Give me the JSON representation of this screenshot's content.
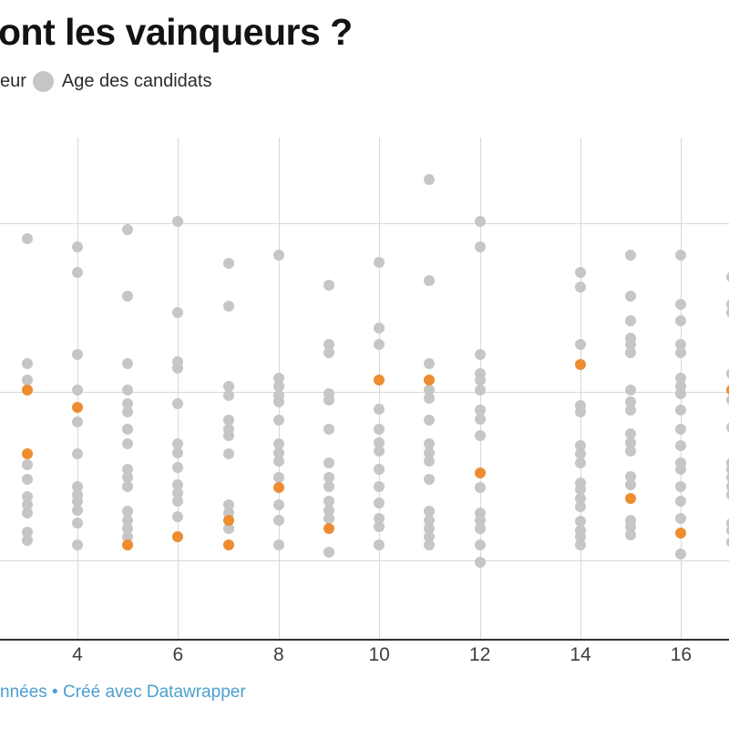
{
  "header": {
    "title": "ont les vainqueurs ?"
  },
  "legend": {
    "winner_label": "eur",
    "candidates_label": "Age des candidats",
    "candidates_swatch_color": "#c6c6c6"
  },
  "footer": {
    "source_fragment": "nnées",
    "separator": " • ",
    "credit": "Créé avec Datawrapper"
  },
  "chart_data": {
    "type": "scatter",
    "title_visible_fragment": "ont les vainqueurs ?",
    "x_axis": {
      "tick_values": [
        4,
        6,
        8,
        10,
        12,
        14,
        16
      ],
      "tick_labels": [
        "4",
        "6",
        "8",
        "10",
        "12",
        "14",
        "16"
      ],
      "visible_range": [
        2.8,
        17
      ],
      "gridlines": true
    },
    "y_axis": {
      "gridline_values": [
        50,
        40,
        30
      ],
      "labels_visible": false,
      "approx_range": [
        25,
        55
      ]
    },
    "series_meta": {
      "winner_name": "Vainqueur",
      "winner_color": "#ee8c31",
      "candidate_name": "Age des candidats",
      "candidate_color": "#c6c6c6"
    },
    "columns": [
      {
        "x": 3,
        "candidates": [
          49.1,
          41.7,
          40.7,
          35.7,
          34.8,
          33.8,
          33.3,
          32.8,
          31.7,
          31.2
        ],
        "winners": [
          40.1,
          36.3
        ]
      },
      {
        "x": 4,
        "candidates": [
          48.6,
          47.1,
          42.2,
          40.1,
          38.2,
          36.3,
          34.4,
          33.9,
          33.5,
          33.0,
          32.2,
          30.9
        ],
        "winners": [
          39.1
        ]
      },
      {
        "x": 5,
        "candidates": [
          49.6,
          45.7,
          41.7,
          40.1,
          39.3,
          38.8,
          37.8,
          36.9,
          35.4,
          34.9,
          34.4,
          32.9,
          32.4,
          31.9,
          31.4
        ],
        "winners": [
          30.9
        ]
      },
      {
        "x": 6,
        "candidates": [
          50.1,
          44.7,
          41.8,
          41.4,
          39.3,
          36.9,
          36.4,
          35.5,
          34.5,
          34.0,
          33.5,
          32.6
        ],
        "winners": [
          31.4
        ]
      },
      {
        "x": 7,
        "candidates": [
          47.6,
          45.1,
          40.3,
          39.8,
          38.3,
          37.8,
          37.4,
          36.3,
          33.3,
          32.8,
          31.9
        ],
        "winners": [
          32.4,
          30.9
        ]
      },
      {
        "x": 8,
        "candidates": [
          48.1,
          40.8,
          40.3,
          39.8,
          39.4,
          38.3,
          36.9,
          36.4,
          35.9,
          34.9,
          33.3,
          32.4,
          30.9
        ],
        "winners": [
          34.3
        ]
      },
      {
        "x": 9,
        "candidates": [
          46.3,
          42.8,
          42.3,
          39.9,
          39.5,
          37.8,
          35.8,
          34.9,
          34.4,
          33.5,
          33.0,
          32.5,
          30.5
        ],
        "winners": [
          31.9
        ]
      },
      {
        "x": 10,
        "candidates": [
          47.7,
          43.8,
          42.8,
          39.0,
          37.8,
          37.0,
          36.5,
          35.4,
          34.4,
          33.4,
          32.5,
          32.0,
          30.9
        ],
        "winners": [
          40.7
        ]
      },
      {
        "x": 11,
        "candidates": [
          52.6,
          46.6,
          41.7,
          40.1,
          39.6,
          38.3,
          36.9,
          36.4,
          35.9,
          34.8,
          32.9,
          32.4,
          31.9,
          31.4,
          30.9
        ],
        "winners": [
          40.7
        ]
      },
      {
        "x": 12,
        "candidates": [
          50.1,
          48.6,
          42.2,
          41.1,
          40.7,
          40.1,
          38.9,
          38.4,
          37.4,
          34.3,
          32.8,
          32.4,
          31.9,
          30.9,
          29.9
        ],
        "winners": [
          35.2
        ]
      },
      {
        "x": 14,
        "candidates": [
          47.1,
          46.2,
          42.8,
          39.2,
          38.8,
          36.8,
          36.3,
          35.8,
          34.6,
          34.2,
          33.7,
          33.2,
          32.3,
          31.8,
          31.4,
          30.9
        ],
        "winners": [
          41.6
        ]
      },
      {
        "x": 15,
        "candidates": [
          48.1,
          45.7,
          44.2,
          43.2,
          42.8,
          42.3,
          40.1,
          39.4,
          38.9,
          37.5,
          37.0,
          36.5,
          35.0,
          34.5,
          32.4,
          32.0,
          31.5
        ],
        "winners": [
          33.7
        ]
      },
      {
        "x": 16,
        "candidates": [
          48.1,
          45.2,
          44.2,
          42.8,
          42.3,
          40.8,
          40.3,
          39.9,
          38.9,
          37.8,
          36.8,
          35.8,
          35.4,
          34.4,
          33.5,
          32.5,
          30.4
        ],
        "winners": [
          31.6
        ]
      },
      {
        "x": 17,
        "candidates": [
          46.8,
          45.2,
          44.7,
          41.1,
          39.5,
          37.9,
          35.8,
          35.4,
          34.9,
          34.4,
          33.9,
          32.2,
          31.8,
          31.1
        ],
        "winners": [
          40.1
        ]
      }
    ]
  }
}
